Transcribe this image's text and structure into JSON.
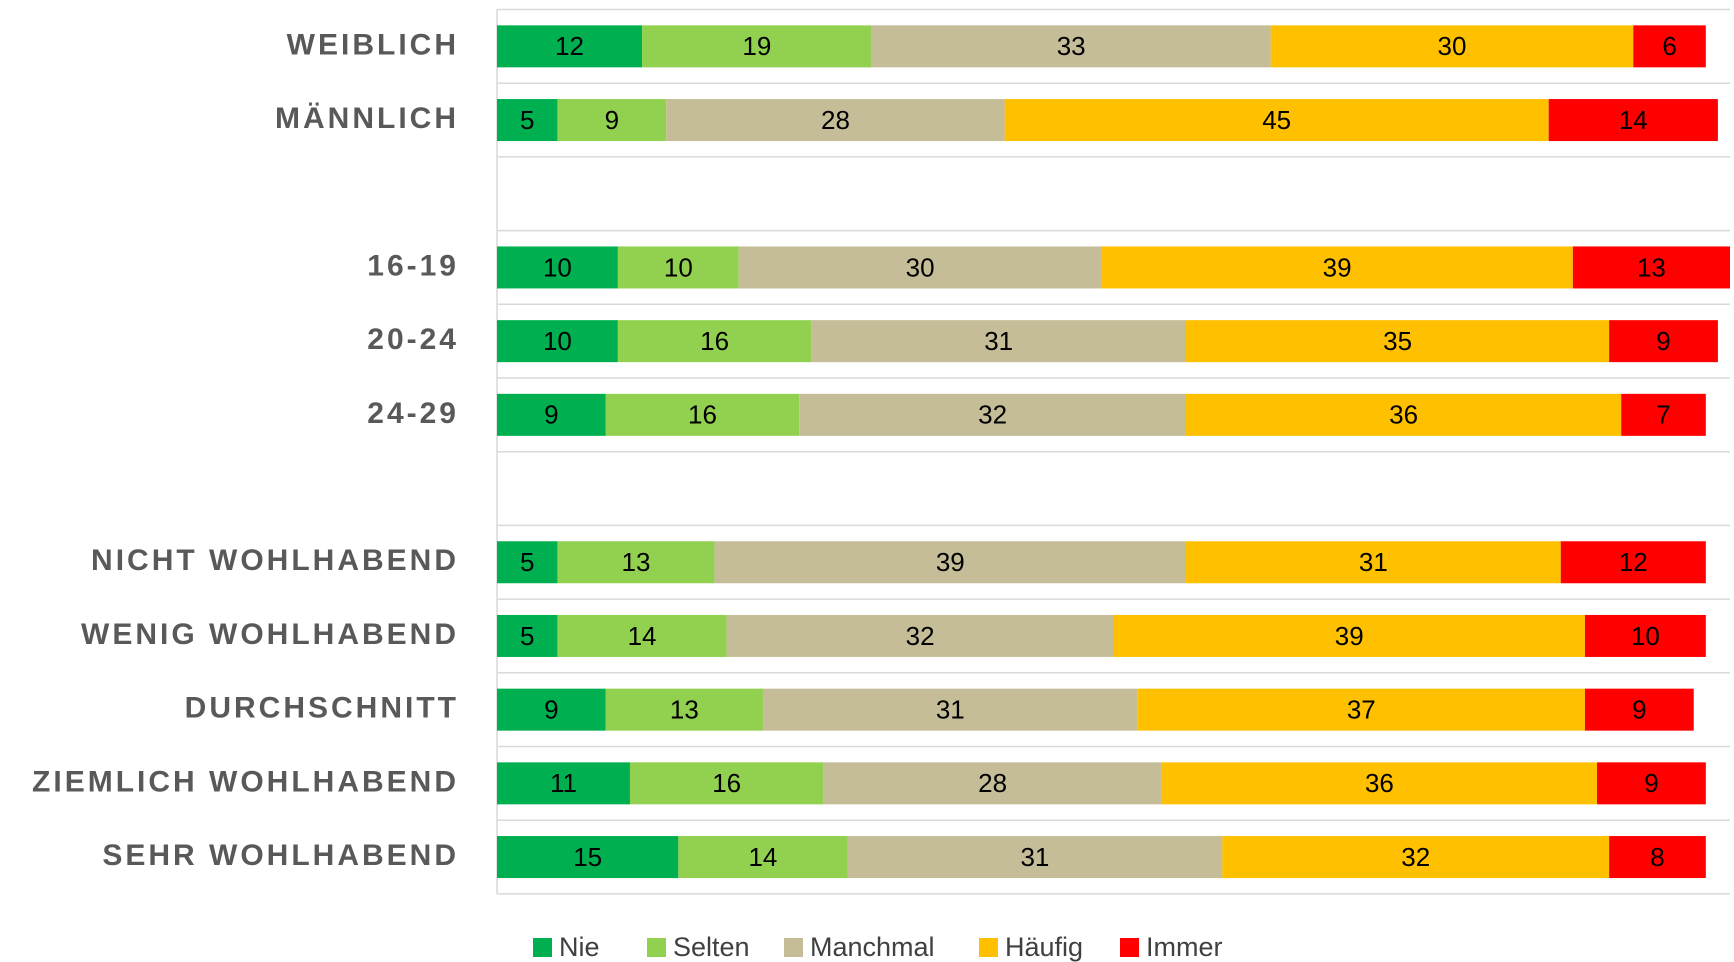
{
  "chart_data": {
    "type": "bar",
    "orientation": "horizontal",
    "stacked": true,
    "categories": [
      "WEIBLICH",
      "MÄNNLICH",
      null,
      "16-19",
      "20-24",
      "24-29",
      null,
      "NICHT WOHLHABEND",
      "WENIG WOHLHABEND",
      "DURCHSCHNITT",
      "ZIEMLICH WOHLHABEND",
      "SEHR WOHLHABEND"
    ],
    "series": [
      {
        "name": "Nie",
        "color": "#00b050",
        "values": [
          12,
          5,
          null,
          10,
          10,
          9,
          null,
          5,
          5,
          9,
          11,
          15
        ]
      },
      {
        "name": "Selten",
        "color": "#92d050",
        "values": [
          19,
          9,
          null,
          10,
          16,
          16,
          null,
          13,
          14,
          13,
          16,
          14
        ]
      },
      {
        "name": "Manchmal",
        "color": "#c4bd97",
        "values": [
          33,
          28,
          null,
          30,
          31,
          32,
          null,
          39,
          32,
          31,
          28,
          31
        ]
      },
      {
        "name": "Häufig",
        "color": "#ffc000",
        "values": [
          30,
          45,
          null,
          39,
          35,
          36,
          null,
          31,
          39,
          37,
          36,
          32
        ]
      },
      {
        "name": "Immer",
        "color": "#ff0000",
        "values": [
          6,
          14,
          null,
          13,
          9,
          7,
          null,
          12,
          10,
          9,
          9,
          8
        ]
      }
    ],
    "legend": "bottom"
  }
}
